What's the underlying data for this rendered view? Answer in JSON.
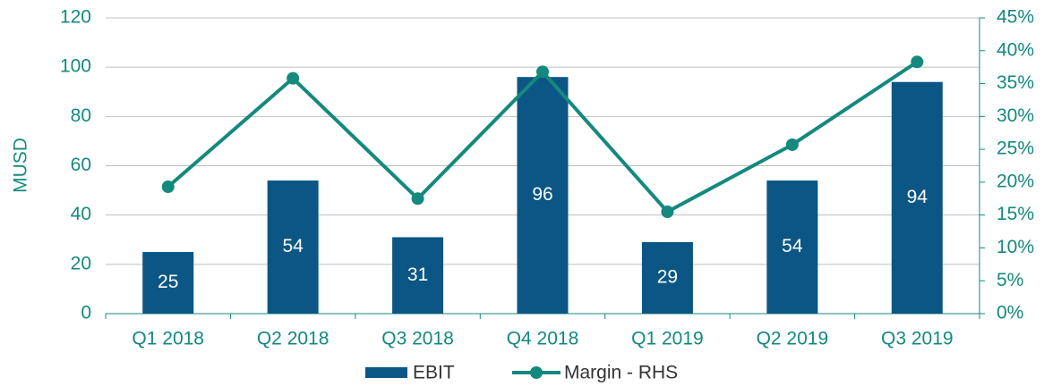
{
  "chart_data": {
    "type": "bar",
    "y_label": "MUSD",
    "categories": [
      "Q1 2018",
      "Q2 2018",
      "Q3 2018",
      "Q4 2018",
      "Q1 2019",
      "Q2 2019",
      "Q3 2019"
    ],
    "series": [
      {
        "name": "EBIT",
        "type": "bar",
        "color": "#0b5684",
        "values": [
          25,
          54,
          31,
          96,
          29,
          54,
          94
        ]
      },
      {
        "name": "Margin - RHS",
        "type": "line",
        "axis": "y2",
        "color": "#14897d",
        "values": [
          19.3,
          35.8,
          17.5,
          36.8,
          15.5,
          25.7,
          38.3
        ]
      }
    ],
    "ylim": [
      0,
      120
    ],
    "yticks": [
      0,
      20,
      40,
      60,
      80,
      100,
      120
    ],
    "y2lim": [
      0,
      45
    ],
    "y2ticks": [
      {
        "value": 0,
        "label": "0%"
      },
      {
        "value": 5,
        "label": "5%"
      },
      {
        "value": 10,
        "label": "10%"
      },
      {
        "value": 15,
        "label": "15%"
      },
      {
        "value": 20,
        "label": "20%"
      },
      {
        "value": 25,
        "label": "25%"
      },
      {
        "value": 30,
        "label": "30%"
      },
      {
        "value": 35,
        "label": "35%"
      },
      {
        "value": 40,
        "label": "40%"
      },
      {
        "value": 45,
        "label": "45%"
      }
    ],
    "grid": true,
    "legend": "bottom"
  }
}
